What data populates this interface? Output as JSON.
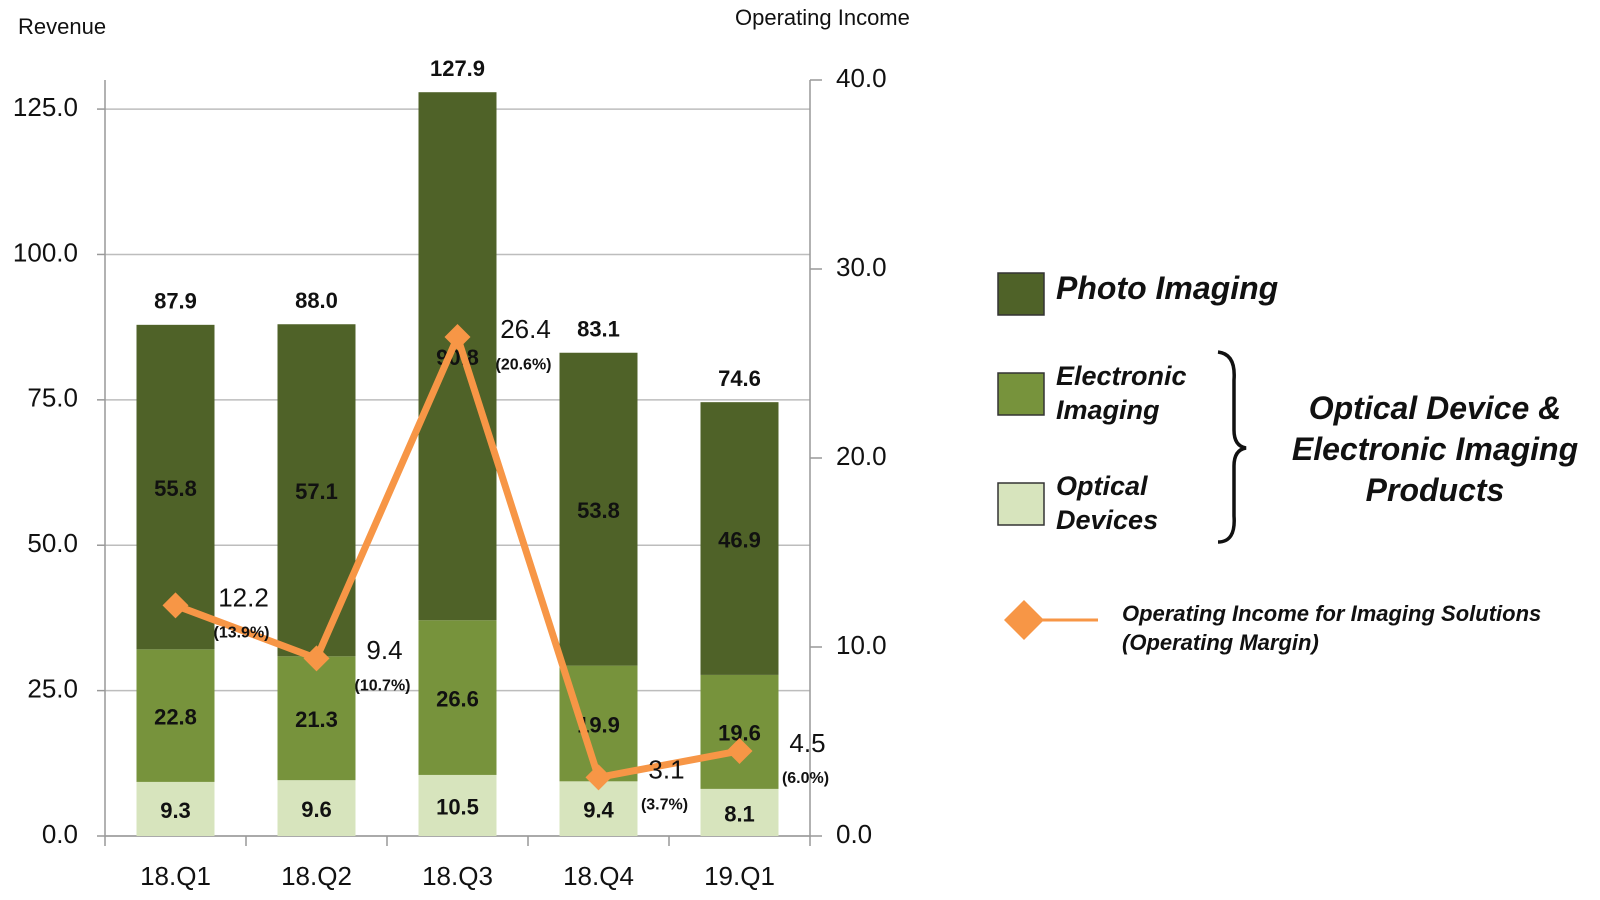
{
  "chart_data": {
    "type": "bar",
    "stacked": true,
    "y_title": "Revenue",
    "y2_title": "Operating Income",
    "categories": [
      "18.Q1",
      "18.Q2",
      "18.Q3",
      "18.Q4",
      "19.Q1"
    ],
    "series": [
      {
        "name": "Optical Devices",
        "color": "#d7e4bd",
        "label_color": "#1a1a1a",
        "values": [
          9.3,
          9.6,
          10.5,
          9.4,
          8.1
        ]
      },
      {
        "name": "Electronic Imaging",
        "color": "#77933c",
        "label_color": "#1a1a1a",
        "values": [
          22.8,
          21.3,
          26.6,
          19.9,
          19.6
        ]
      },
      {
        "name": "Photo Imaging",
        "color": "#4f6228",
        "label_color": "#ffffff",
        "values": [
          55.8,
          57.1,
          90.8,
          53.8,
          46.9
        ]
      },
      {
        "name": "Operating Income for Imaging Solutions",
        "type": "line",
        "axis": "y2",
        "color": "#f79646",
        "values": [
          12.2,
          9.4,
          26.4,
          3.1,
          4.5
        ],
        "margin_labels": [
          "(13.9%)",
          "(10.7%)",
          "(20.6%)",
          "(3.7%)",
          "(6.0%)"
        ]
      }
    ],
    "totals": {
      "values": [
        87.9,
        88.0,
        127.9,
        83.1,
        74.6
      ],
      "value_labels": [
        "87.9",
        "88.0",
        "127.9",
        "83.1",
        "74.6"
      ]
    },
    "line_legend_note": "(Operating Margin)",
    "group_label": [
      "Optical Device &",
      "Electronic Imaging",
      "Products"
    ],
    "ylim": [
      0,
      130
    ],
    "yticks": [
      {
        "value": 0,
        "label": "0.0"
      },
      {
        "value": 25,
        "label": "25.0"
      },
      {
        "value": 50,
        "label": "50.0"
      },
      {
        "value": 75,
        "label": "75.0"
      },
      {
        "value": 100,
        "label": "100.0"
      },
      {
        "value": 125,
        "label": "125.0"
      }
    ],
    "y2lim": [
      0,
      40
    ],
    "y2ticks": [
      {
        "value": 0,
        "label": "0.0"
      },
      {
        "value": 10,
        "label": "10.0"
      },
      {
        "value": 20,
        "label": "20.0"
      },
      {
        "value": 30,
        "label": "30.0"
      },
      {
        "value": 40,
        "label": "40.0"
      }
    ],
    "grid": true
  }
}
